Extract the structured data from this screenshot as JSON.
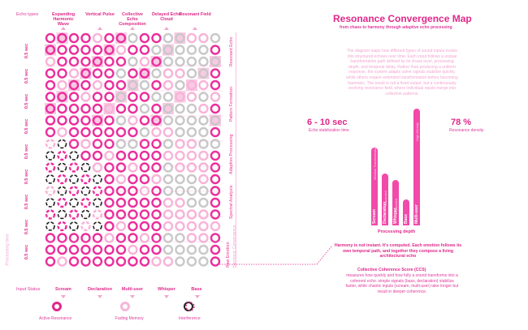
{
  "title": "Resonance Convergence Map",
  "subtitle": "from chaos to harmony through adaptive echo processing",
  "description": "The diagram maps how different types of sound inputs evolve into structured echoes over time. Each input follows a unique transformation path defined by its chaos level, processing depth, and temporal delay. Rather than producing a uniform response, the system adapts some signals stabilize quickly, while others require extended transformation before becoming harmonic. The result is not a fixed output, but a continuously evolving resonance field, where individual inputs merge into collective patterns.",
  "echo_types_label": "Echo types",
  "echo_types": [
    "Expanding Harmonic Wave",
    "Vertical Pulse",
    "Collective Echo Composition",
    "Delayed Echo Cloud",
    "Resonant Field"
  ],
  "input_status_label": "Input Status",
  "inputs": [
    "Scream",
    "Declaration",
    "Multi-user",
    "Whisper",
    "Bass"
  ],
  "time_labels": [
    "0.5 sec",
    "0.5 sec",
    "0.5 sec",
    "0.5 sec",
    "0.5 sec",
    "0.5 sec",
    "0.5 sec",
    "0.5 sec",
    "0.5 sec"
  ],
  "processing_time_label": "Processing time",
  "stages": [
    "Raw Emotion",
    "Spectral Analysis",
    "Adaptive Processing",
    "Pattern Formation",
    "Resonant Echo"
  ],
  "stage_extra": "Harmonic Convergence",
  "stat1": {
    "value": "6 - 10 sec",
    "label": "Echo stabilization time"
  },
  "stat2": {
    "value": "78 %",
    "label": "Resonance density"
  },
  "processing_depth_label": "Processing depth",
  "bar_color": "#f24aaa",
  "accent_color": "#e0288a",
  "chart_data": {
    "type": "bar",
    "categories": [
      "Scream",
      "Declaration",
      "Whisper",
      "Bass",
      "Multi-user"
    ],
    "values": [
      6,
      4,
      3.5,
      2,
      9
    ],
    "value_labels": [
      "Medium Transformation",
      "Structured",
      "Extended",
      "Fast",
      "High Density"
    ]
  },
  "statement": "Harmony is not instant. It's computed. Each emotion follows its own temporal path, and together they compose a living architectural echo",
  "ccs_title": "Collective Coherence Score (CCS)",
  "ccs_text": "measures how quickly and how fully a sound transforms into a coherent echo. simple signals (bass, declaration) stabilize faster, while chaotic inputs (scream, multi-user) take longer but result in deeper coherence.",
  "legend": [
    {
      "label": "Active Resonance",
      "icon": "solid-ring-icon"
    },
    {
      "label": "Fading Memory",
      "icon": "faded-ring-icon"
    },
    {
      "label": "Interference",
      "icon": "interference-icon"
    }
  ]
}
